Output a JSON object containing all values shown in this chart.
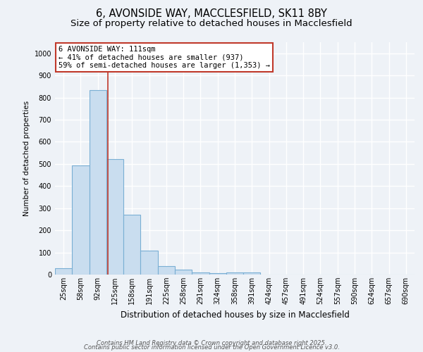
{
  "title1": "6, AVONSIDE WAY, MACCLESFIELD, SK11 8BY",
  "title2": "Size of property relative to detached houses in Macclesfield",
  "xlabel": "Distribution of detached houses by size in Macclesfield",
  "ylabel": "Number of detached properties",
  "categories": [
    "25sqm",
    "58sqm",
    "92sqm",
    "125sqm",
    "158sqm",
    "191sqm",
    "225sqm",
    "258sqm",
    "291sqm",
    "324sqm",
    "358sqm",
    "391sqm",
    "424sqm",
    "457sqm",
    "491sqm",
    "524sqm",
    "557sqm",
    "590sqm",
    "624sqm",
    "657sqm",
    "690sqm"
  ],
  "values": [
    28,
    492,
    833,
    523,
    271,
    108,
    38,
    22,
    10,
    5,
    8,
    8,
    0,
    0,
    0,
    0,
    0,
    0,
    0,
    0,
    0
  ],
  "bar_color": "#c9ddef",
  "bar_edge_color": "#7aafd4",
  "annotation_text": "6 AVONSIDE WAY: 111sqm\n← 41% of detached houses are smaller (937)\n59% of semi-detached houses are larger (1,353) →",
  "vline_color": "#c0392b",
  "ylim": [
    0,
    1050
  ],
  "yticks": [
    0,
    100,
    200,
    300,
    400,
    500,
    600,
    700,
    800,
    900,
    1000
  ],
  "footer1": "Contains HM Land Registry data © Crown copyright and database right 2025.",
  "footer2": "Contains public sector information licensed under the Open Government Licence v3.0.",
  "bg_color": "#eef2f7",
  "plot_bg_color": "#eef2f7",
  "grid_color": "#ffffff",
  "title1_fontsize": 10.5,
  "title2_fontsize": 9.5,
  "xlabel_fontsize": 8.5,
  "ylabel_fontsize": 7.5,
  "tick_fontsize": 7,
  "annot_fontsize": 7.5,
  "footer_fontsize": 6
}
